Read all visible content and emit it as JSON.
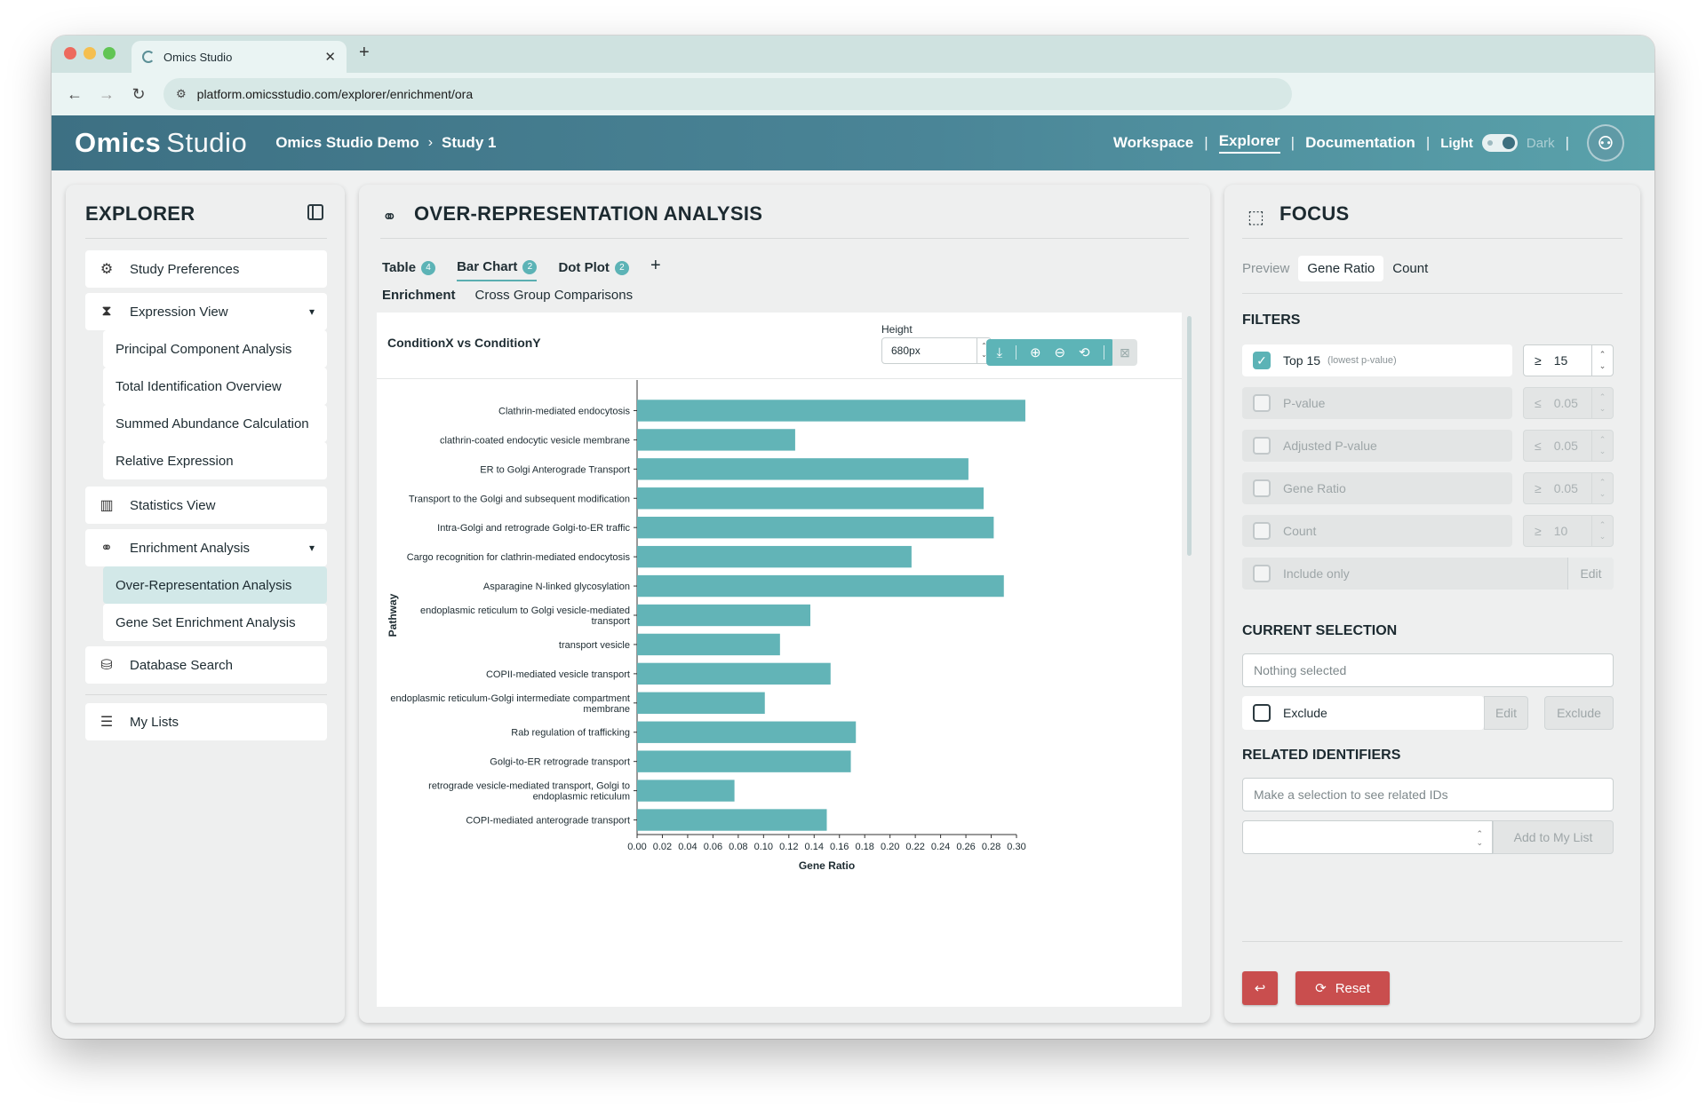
{
  "browser": {
    "tab_title": "Omics Studio",
    "url": "platform.omicsstudio.com/explorer/enrichment/ora"
  },
  "header": {
    "logo_primary": "Omics",
    "logo_secondary": "Studio",
    "breadcrumb": [
      "Omics Studio Demo",
      "Study 1"
    ],
    "nav": [
      "Workspace",
      "Explorer",
      "Documentation"
    ],
    "active_nav": "Explorer",
    "theme_light": "Light",
    "theme_dark": "Dark"
  },
  "explorer": {
    "title": "EXPLORER",
    "study_preferences": "Study Preferences",
    "expression_view": "Expression View",
    "expression_items": [
      "Principal Component Analysis",
      "Total Identification Overview",
      "Summed Abundance Calculation",
      "Relative Expression"
    ],
    "statistics_view": "Statistics View",
    "enrichment_analysis": "Enrichment Analysis",
    "enrichment_items": [
      "Over-Representation Analysis",
      "Gene Set Enrichment Analysis"
    ],
    "database_search": "Database Search",
    "my_lists": "My Lists"
  },
  "main": {
    "title": "OVER-REPRESENTATION ANALYSIS",
    "tabs": [
      {
        "label": "Table",
        "badge": "4"
      },
      {
        "label": "Bar Chart",
        "badge": "2"
      },
      {
        "label": "Dot Plot",
        "badge": "2"
      }
    ],
    "active_tab": "Bar Chart",
    "subtabs": [
      "Enrichment",
      "Cross Group Comparisons"
    ],
    "chart_title": "ConditionX vs ConditionY",
    "height_label": "Height",
    "height_value": "680px"
  },
  "chart_data": {
    "type": "bar",
    "orientation": "horizontal",
    "title": "ConditionX vs ConditionY",
    "xlabel": "Gene Ratio",
    "ylabel": "Pathway",
    "xlim": [
      0,
      0.3
    ],
    "xticks": [
      "0.00",
      "0.02",
      "0.04",
      "0.06",
      "0.08",
      "0.10",
      "0.12",
      "0.14",
      "0.16",
      "0.18",
      "0.20",
      "0.22",
      "0.24",
      "0.26",
      "0.28",
      "0.30"
    ],
    "color": "#62b4b7",
    "categories": [
      [
        "Clathrin-mediated endocytosis"
      ],
      [
        "clathrin-coated endocytic vesicle membrane"
      ],
      [
        "ER to Golgi Anterograde Transport"
      ],
      [
        "Transport to the Golgi and subsequent modification"
      ],
      [
        "Intra-Golgi and retrograde Golgi-to-ER traffic"
      ],
      [
        "Cargo recognition for clathrin-mediated endocytosis"
      ],
      [
        "Asparagine N-linked glycosylation"
      ],
      [
        "endoplasmic reticulum to Golgi vesicle-mediated",
        "transport"
      ],
      [
        "transport vesicle"
      ],
      [
        "COPII-mediated vesicle transport"
      ],
      [
        "endoplasmic reticulum-Golgi intermediate compartment",
        "membrane"
      ],
      [
        "Rab regulation of trafficking"
      ],
      [
        "Golgi-to-ER retrograde transport"
      ],
      [
        "retrograde vesicle-mediated transport, Golgi to",
        "endoplasmic reticulum"
      ],
      [
        "COPI-mediated anterograde transport"
      ]
    ],
    "values": [
      0.307,
      0.125,
      0.262,
      0.274,
      0.282,
      0.217,
      0.29,
      0.137,
      0.113,
      0.153,
      0.101,
      0.173,
      0.169,
      0.077,
      0.15
    ]
  },
  "focus": {
    "title": "FOCUS",
    "tabs": [
      "Preview",
      "Gene Ratio",
      "Count"
    ],
    "active_tab": "Gene Ratio",
    "filters_title": "FILTERS",
    "filters": [
      {
        "label": "Top 15",
        "hint": "(lowest p-value)",
        "op": "≥",
        "value": "15",
        "checked": true,
        "enabled": true
      },
      {
        "label": "P-value",
        "op": "≤",
        "value": "0.05",
        "checked": false,
        "enabled": false
      },
      {
        "label": "Adjusted P-value",
        "op": "≤",
        "value": "0.05",
        "checked": false,
        "enabled": false
      },
      {
        "label": "Gene Ratio",
        "op": "≥",
        "value": "0.05",
        "checked": false,
        "enabled": false
      },
      {
        "label": "Count",
        "op": "≥",
        "value": "10",
        "checked": false,
        "enabled": false
      }
    ],
    "include_only": "Include only",
    "edit": "Edit",
    "current_selection_title": "CURRENT SELECTION",
    "selection_placeholder": "Nothing selected",
    "exclude": "Exclude",
    "exclude_button": "Exclude",
    "related_title": "RELATED IDENTIFIERS",
    "related_placeholder": "Make a selection to see related IDs",
    "add_to_list": "Add to My List",
    "reset": "Reset",
    "accent": "#c94e4e"
  }
}
